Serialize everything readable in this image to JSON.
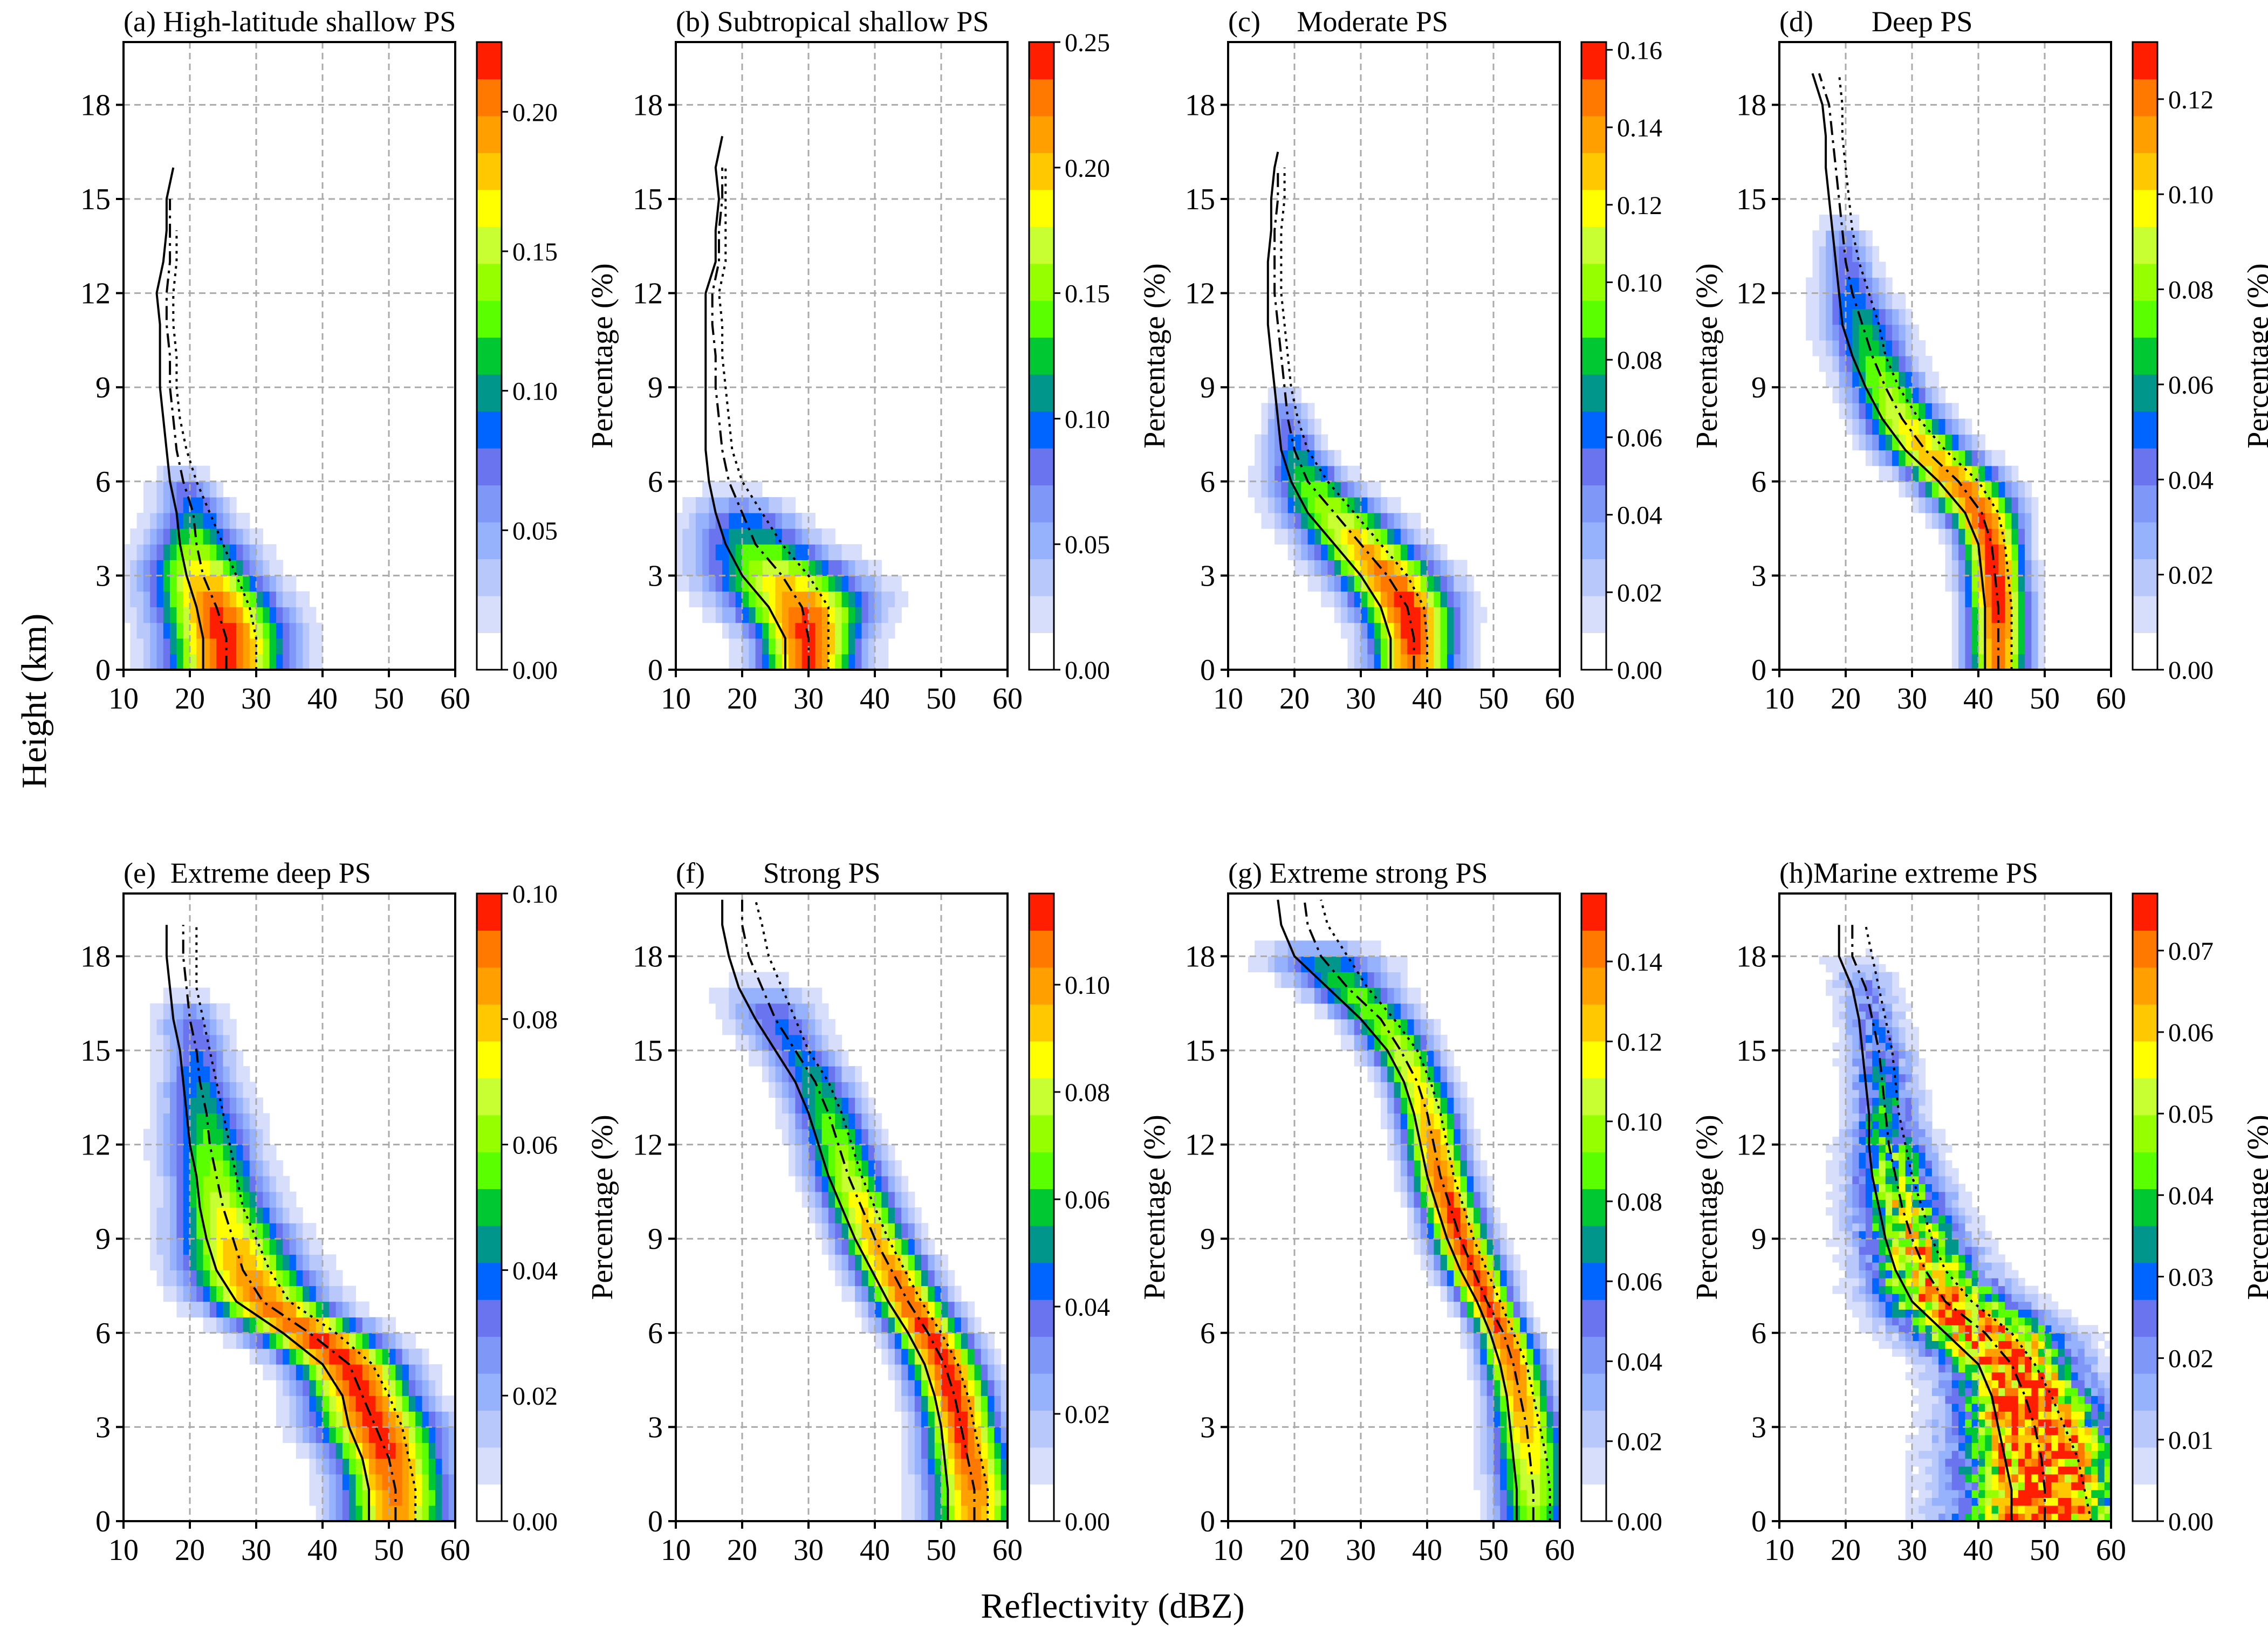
{
  "xlabel": "Reflectivity (dBZ)",
  "ylabel": "Height (km)",
  "colorbar_label": "Percentage (%)",
  "colormap": [
    "#ffffff",
    "#d7defc",
    "#b9c8fb",
    "#97b2fc",
    "#7f97f6",
    "#6b74ef",
    "#0064ff",
    "#00968c",
    "#00c832",
    "#5aff00",
    "#96ff00",
    "#c8ff32",
    "#ffff00",
    "#ffc800",
    "#ffa000",
    "#ff7800",
    "#ff1e00"
  ],
  "chart_data": [
    {
      "type": "heatmap",
      "title": "(a) High-latitude shallow PS",
      "xlim": [
        10,
        60
      ],
      "ylim": [
        0,
        20
      ],
      "xticks": [
        10,
        20,
        30,
        40,
        50,
        60
      ],
      "yticks": [
        0,
        3,
        6,
        9,
        12,
        15,
        18
      ],
      "grid": true,
      "cbar_max": 0.225,
      "cbar_ticks": [
        "0.00",
        "0.05",
        "0.10",
        "0.15",
        "0.20"
      ],
      "heights": [
        0,
        1,
        2,
        3,
        4,
        5,
        6,
        7,
        8,
        9,
        10,
        11,
        12,
        13,
        14,
        15,
        16
      ],
      "solid": [
        22,
        22,
        21,
        19.5,
        18.5,
        18,
        17,
        16.5,
        16,
        15.5,
        15.5,
        15.5,
        15,
        16,
        16.5,
        16.5,
        17.5
      ],
      "dashdot": [
        25.5,
        25.5,
        24,
        22,
        21,
        20.5,
        19,
        18,
        17.5,
        17,
        17,
        16.5,
        16.5,
        17,
        17,
        17,
        null
      ],
      "dotted": [
        30,
        30,
        29,
        27,
        25,
        23,
        21,
        19.5,
        18.5,
        18,
        18,
        17.5,
        17.5,
        18,
        18,
        null,
        null
      ]
    },
    {
      "type": "heatmap",
      "title": "(b) Subtropical shallow PS",
      "xlim": [
        10,
        60
      ],
      "ylim": [
        0,
        20
      ],
      "xticks": [
        10,
        20,
        30,
        40,
        50,
        60
      ],
      "yticks": [
        0,
        3,
        6,
        9,
        12,
        15,
        18
      ],
      "grid": true,
      "cbar_max": 0.25,
      "cbar_ticks": [
        "0.00",
        "0.05",
        "0.10",
        "0.15",
        "0.20",
        "0.25"
      ],
      "heights": [
        0,
        1,
        2,
        3,
        4,
        5,
        6,
        7,
        8,
        9,
        10,
        11,
        12,
        13,
        14,
        15,
        16,
        17
      ],
      "solid": [
        26.5,
        26.5,
        24,
        20,
        17.5,
        16,
        15,
        14.5,
        14.5,
        14.5,
        14.5,
        14.5,
        14.5,
        16,
        16,
        16.5,
        16,
        17
      ],
      "dashdot": [
        30,
        30,
        29,
        26,
        22,
        20,
        18,
        17,
        16.5,
        16,
        16,
        15.5,
        15.5,
        16.5,
        16.5,
        17,
        17,
        null
      ],
      "dotted": [
        33,
        33,
        33,
        30,
        26,
        23,
        20,
        18.5,
        18,
        17.5,
        17,
        17,
        16.5,
        17.5,
        17.5,
        17.5,
        17.5,
        null
      ]
    },
    {
      "type": "heatmap",
      "title": "(c)     Moderate PS",
      "xlim": [
        10,
        60
      ],
      "ylim": [
        0,
        20
      ],
      "xticks": [
        10,
        20,
        30,
        40,
        50,
        60
      ],
      "yticks": [
        0,
        3,
        6,
        9,
        12,
        15,
        18
      ],
      "grid": true,
      "cbar_max": 0.162,
      "cbar_ticks": [
        "0.00",
        "0.02",
        "0.04",
        "0.06",
        "0.08",
        "0.10",
        "0.12",
        "0.14",
        "0.16"
      ],
      "heights": [
        0,
        1,
        2,
        3,
        4,
        5,
        6,
        7,
        8,
        9,
        10,
        11,
        12,
        13,
        14,
        15,
        16,
        16.5
      ],
      "solid": [
        34.5,
        34.5,
        33,
        30,
        26,
        22,
        19.5,
        18,
        17.5,
        17,
        16.5,
        16,
        16,
        16,
        16.5,
        16.5,
        17,
        17.5
      ],
      "dashdot": [
        38,
        38,
        37,
        34,
        30,
        26,
        22,
        20,
        19,
        18.5,
        18,
        17.5,
        17,
        17,
        17,
        17.5,
        17.5,
        null
      ],
      "dotted": [
        40,
        40,
        39.5,
        37,
        33,
        29,
        25,
        22,
        20.5,
        19.5,
        19,
        18.5,
        18,
        18,
        18,
        18.5,
        18.5,
        null
      ]
    },
    {
      "type": "heatmap",
      "title": "(d)        Deep PS",
      "xlim": [
        10,
        60
      ],
      "ylim": [
        0,
        20
      ],
      "xticks": [
        10,
        20,
        30,
        40,
        50,
        60
      ],
      "yticks": [
        0,
        3,
        6,
        9,
        12,
        15,
        18
      ],
      "grid": true,
      "cbar_max": 0.132,
      "cbar_ticks": [
        "0.00",
        "0.02",
        "0.04",
        "0.06",
        "0.08",
        "0.10",
        "0.12"
      ],
      "heights": [
        0,
        1,
        2,
        3,
        4,
        5,
        6,
        7,
        8,
        9,
        10,
        11,
        12,
        13,
        14,
        15,
        16,
        17,
        18,
        19
      ],
      "solid": [
        41,
        41,
        41,
        40.5,
        40,
        38,
        34,
        29,
        25.5,
        23,
        21,
        19.5,
        19,
        18.5,
        18,
        17.5,
        17,
        17,
        16.5,
        15
      ],
      "dashdot": [
        43,
        43,
        43,
        42.5,
        42,
        40.5,
        37,
        32,
        28.5,
        26,
        24,
        22.5,
        21,
        20,
        19.5,
        19,
        18.5,
        18,
        17.5,
        16
      ],
      "dotted": [
        45,
        45,
        45,
        44.5,
        44,
        43,
        40,
        35,
        31,
        28,
        26,
        25,
        23.5,
        22,
        21,
        20.5,
        20,
        19.5,
        19.5,
        19
      ]
    },
    {
      "type": "heatmap",
      "title": "(e)  Extreme deep PS",
      "xlim": [
        10,
        60
      ],
      "ylim": [
        0,
        20
      ],
      "xticks": [
        10,
        20,
        30,
        40,
        50,
        60
      ],
      "yticks": [
        0,
        3,
        6,
        9,
        12,
        15,
        18
      ],
      "grid": true,
      "cbar_max": 0.1,
      "cbar_ticks": [
        "0.00",
        "0.02",
        "0.04",
        "0.06",
        "0.08",
        "0.10"
      ],
      "heights": [
        0,
        1,
        2,
        3,
        4,
        5,
        6,
        7,
        8,
        9,
        10,
        11,
        12,
        13,
        14,
        15,
        16,
        17,
        18,
        19
      ],
      "solid": [
        47,
        47,
        46,
        44,
        43,
        40,
        34,
        27,
        24,
        22.5,
        21.5,
        21,
        20,
        19.5,
        19,
        18.5,
        17.5,
        17,
        16.5,
        16.5
      ],
      "dashdot": [
        51,
        51,
        50,
        48,
        46,
        44,
        38,
        31,
        28,
        26.5,
        25,
        24,
        23,
        22.5,
        21.5,
        21,
        20,
        19.5,
        19,
        19
      ],
      "dotted": [
        54,
        54,
        53,
        52,
        50,
        47.5,
        42,
        35,
        32,
        30,
        28,
        27,
        26,
        25,
        24,
        23,
        22,
        21,
        21,
        21
      ]
    },
    {
      "type": "heatmap",
      "title": "(f)        Strong PS",
      "xlim": [
        10,
        60
      ],
      "ylim": [
        0,
        20
      ],
      "xticks": [
        10,
        20,
        30,
        40,
        50,
        60
      ],
      "yticks": [
        0,
        3,
        6,
        9,
        12,
        15,
        18
      ],
      "grid": true,
      "cbar_max": 0.117,
      "cbar_ticks": [
        "0.00",
        "0.02",
        "0.04",
        "0.06",
        "0.08",
        "0.10"
      ],
      "heights": [
        0,
        1,
        2,
        3,
        4,
        5,
        6,
        7,
        8,
        9,
        10,
        11,
        12,
        13,
        14,
        15,
        16,
        17,
        18,
        19,
        19.8
      ],
      "solid": [
        51,
        51,
        50.5,
        50,
        49,
        47.5,
        45,
        42,
        39.5,
        37,
        35,
        33,
        31.5,
        30,
        28,
        25,
        22,
        19.5,
        18,
        17,
        17
      ],
      "dashdot": [
        55,
        55,
        54,
        53,
        52,
        50.5,
        48,
        45,
        42.5,
        40,
        38,
        36,
        34.5,
        33,
        31,
        28,
        25,
        23,
        21,
        20,
        20
      ],
      "dotted": [
        57,
        57,
        56,
        55,
        54,
        52.5,
        50,
        47,
        44.5,
        42,
        40,
        38,
        36.5,
        35,
        33,
        30,
        28,
        26,
        24,
        23,
        22
      ]
    },
    {
      "type": "heatmap",
      "title": "(g) Extreme strong PS",
      "xlim": [
        10,
        60
      ],
      "ylim": [
        0,
        20
      ],
      "xticks": [
        10,
        20,
        30,
        40,
        50,
        60
      ],
      "yticks": [
        0,
        3,
        6,
        9,
        12,
        15,
        18
      ],
      "grid": true,
      "cbar_max": 0.157,
      "cbar_ticks": [
        "0.00",
        "0.02",
        "0.04",
        "0.06",
        "0.08",
        "0.10",
        "0.12",
        "0.14"
      ],
      "heights": [
        0,
        1,
        2,
        3,
        4,
        5,
        6,
        7,
        8,
        9,
        10,
        11,
        12,
        13,
        14,
        15,
        16,
        17,
        18,
        19,
        19.8
      ],
      "solid": [
        53.5,
        53.5,
        53,
        52.5,
        52,
        51,
        49.5,
        47.5,
        45,
        43,
        41.5,
        40,
        39,
        38,
        36.5,
        34,
        30,
        25,
        20,
        18,
        17.5
      ],
      "dashdot": [
        56,
        56,
        55.5,
        55,
        54,
        53,
        51.5,
        49,
        47,
        45,
        43.5,
        42,
        41,
        40,
        38.5,
        36,
        33,
        28,
        24,
        22,
        21.5
      ],
      "dotted": [
        58.5,
        58.5,
        58,
        57,
        56,
        55,
        53,
        51,
        49,
        47,
        45.5,
        44,
        43,
        42,
        40.5,
        38.5,
        35,
        31,
        28,
        25,
        24
      ]
    },
    {
      "type": "heatmap",
      "title": "(h)Marine extreme PS",
      "xlim": [
        10,
        60
      ],
      "ylim": [
        0,
        20
      ],
      "xticks": [
        10,
        20,
        30,
        40,
        50,
        60
      ],
      "yticks": [
        0,
        3,
        6,
        9,
        12,
        15,
        18
      ],
      "grid": true,
      "cbar_max": 0.077,
      "cbar_ticks": [
        "0.00",
        "0.01",
        "0.02",
        "0.03",
        "0.04",
        "0.05",
        "0.06",
        "0.07"
      ],
      "heights": [
        0,
        1,
        2,
        3,
        4,
        5,
        6,
        7,
        8,
        9,
        10,
        11,
        12,
        13,
        14,
        15,
        16,
        17,
        18,
        19
      ],
      "solid": [
        45,
        45,
        44,
        43,
        42,
        40,
        35,
        30,
        27.5,
        26,
        25,
        24,
        23.5,
        23.5,
        23,
        22.5,
        22,
        21,
        19,
        19
      ],
      "dashdot": [
        50,
        50,
        49.5,
        48.5,
        47,
        45,
        41,
        35,
        32,
        30,
        28.5,
        27.5,
        26.5,
        26,
        25.5,
        25,
        24,
        23,
        21,
        21
      ],
      "dotted": [
        57,
        56,
        55,
        53,
        51,
        48.5,
        45,
        39,
        35,
        33,
        31.5,
        30,
        29,
        28,
        27.5,
        27,
        26,
        25,
        24,
        23
      ]
    }
  ]
}
